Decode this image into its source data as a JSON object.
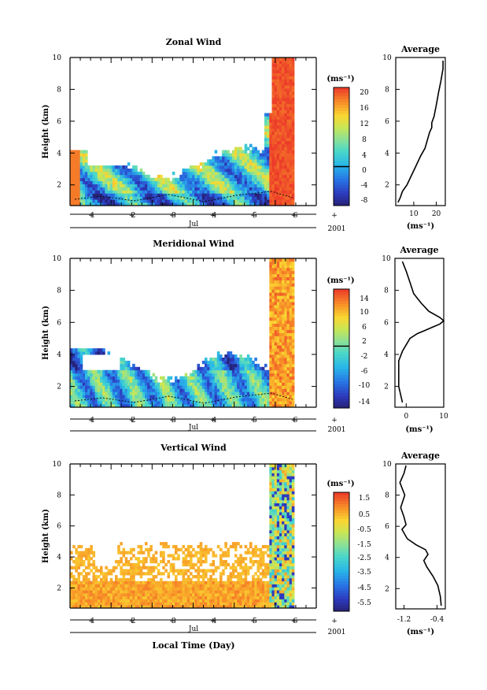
{
  "chart_data": [
    {
      "type": "heatmap",
      "title": "Zonal Wind",
      "ylabel": "Height (km)",
      "ylim": [
        0.7,
        10
      ],
      "yticks": [
        2,
        4,
        6,
        8,
        10
      ],
      "x_day_ticks": [
        "1",
        "2",
        "3",
        "4",
        "5",
        "6"
      ],
      "month_label": "Jul",
      "year_label": "2001",
      "colorbar": {
        "unit": "(ms⁻¹)",
        "tick_labels": [
          "20",
          "16",
          "12",
          "8",
          "4",
          "0",
          "-4",
          "-8"
        ],
        "range": [
          -10,
          22
        ],
        "zero_contour": 0
      },
      "profile": {
        "title": "Average",
        "xlabel": "(ms⁻¹)",
        "xticks": [
          "10",
          "20"
        ],
        "xlim": [
          2,
          24
        ],
        "yticks": [
          2,
          4,
          6,
          8,
          10
        ],
        "points": [
          [
            3,
            0.9
          ],
          [
            4,
            1.2
          ],
          [
            5,
            1.6
          ],
          [
            7,
            2.0
          ],
          [
            9,
            2.6
          ],
          [
            11,
            3.2
          ],
          [
            13,
            3.8
          ],
          [
            15,
            4.3
          ],
          [
            16,
            4.8
          ],
          [
            17,
            5.3
          ],
          [
            18,
            5.6
          ],
          [
            18,
            5.9
          ],
          [
            19,
            6.3
          ],
          [
            20,
            7.0
          ],
          [
            21,
            7.8
          ],
          [
            22,
            8.5
          ],
          [
            23,
            9.3
          ],
          [
            23,
            9.8
          ]
        ]
      }
    },
    {
      "type": "heatmap",
      "title": "Meridional Wind",
      "ylabel": "Height (km)",
      "ylim": [
        0.7,
        10
      ],
      "yticks": [
        2,
        4,
        6,
        8,
        10
      ],
      "x_day_ticks": [
        "1",
        "2",
        "3",
        "4",
        "5",
        "6"
      ],
      "month_label": "Jul",
      "year_label": "2001",
      "colorbar": {
        "unit": "(ms⁻¹)",
        "tick_labels": [
          "14",
          "10",
          "6",
          "2",
          "-2",
          "-6",
          "-10",
          "-14"
        ],
        "range": [
          -16,
          16
        ],
        "zero_contour": 0
      },
      "profile": {
        "title": "Average",
        "xlabel": "(ms⁻¹)",
        "xticks": [
          "0",
          "10"
        ],
        "xlim": [
          -3,
          10
        ],
        "yticks": [
          2,
          4,
          6,
          8,
          10
        ],
        "points": [
          [
            -1,
            1.0
          ],
          [
            -2,
            2.0
          ],
          [
            -2,
            3.0
          ],
          [
            -2,
            3.6
          ],
          [
            -1,
            4.2
          ],
          [
            0,
            4.6
          ],
          [
            1,
            5.0
          ],
          [
            3,
            5.3
          ],
          [
            5,
            5.5
          ],
          [
            7,
            5.7
          ],
          [
            9,
            5.9
          ],
          [
            10,
            6.1
          ],
          [
            9,
            6.3
          ],
          [
            6,
            6.7
          ],
          [
            4,
            7.2
          ],
          [
            2,
            7.8
          ],
          [
            1,
            8.5
          ],
          [
            0,
            9.2
          ],
          [
            -1,
            9.8
          ]
        ]
      }
    },
    {
      "type": "heatmap",
      "title": "Vertical Wind",
      "xlabel": "Local Time (Day)",
      "ylabel": "Height (km)",
      "ylim": [
        0.7,
        10
      ],
      "yticks": [
        2,
        4,
        6,
        8,
        10
      ],
      "x_day_ticks": [
        "1",
        "2",
        "3",
        "4",
        "5",
        "6"
      ],
      "month_label": "Jul",
      "year_label": "2001",
      "colorbar": {
        "unit": "(ms⁻¹)",
        "tick_labels": [
          "1.5",
          "0.5",
          "-0.5",
          "-1.5",
          "-2.5",
          "-3.5",
          "-4.5",
          "-5.5"
        ],
        "range": [
          -6,
          2
        ]
      },
      "profile": {
        "title": "Average",
        "xlabel": "(ms⁻¹)",
        "xticks": [
          "-1.2",
          "-0.4"
        ],
        "xlim": [
          -1.4,
          -0.2
        ],
        "yticks": [
          2,
          4,
          6,
          8,
          10
        ],
        "points": [
          [
            -0.3,
            0.9
          ],
          [
            -0.32,
            1.5
          ],
          [
            -0.38,
            2.2
          ],
          [
            -0.5,
            2.8
          ],
          [
            -0.65,
            3.4
          ],
          [
            -0.72,
            3.8
          ],
          [
            -0.62,
            4.2
          ],
          [
            -0.68,
            4.5
          ],
          [
            -0.9,
            4.8
          ],
          [
            -1.12,
            5.2
          ],
          [
            -1.25,
            5.8
          ],
          [
            -1.15,
            6.1
          ],
          [
            -1.2,
            6.6
          ],
          [
            -1.28,
            7.2
          ],
          [
            -1.18,
            8.0
          ],
          [
            -1.3,
            8.8
          ],
          [
            -1.2,
            9.4
          ],
          [
            -1.15,
            9.9
          ]
        ]
      }
    }
  ]
}
